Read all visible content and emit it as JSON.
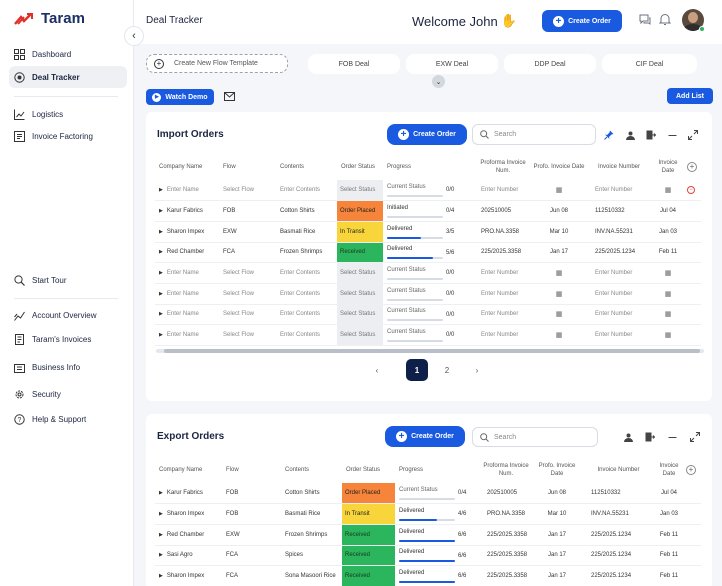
{
  "app": {
    "name": "Taram",
    "logo_icon": "taram-logo-icon"
  },
  "sidebar": {
    "items": [
      {
        "label": "Dashboard"
      },
      {
        "label": "Deal Tracker"
      },
      {
        "label": "Logistics"
      },
      {
        "label": "Invoice Factoring"
      },
      {
        "label": "Start Tour"
      },
      {
        "label": "Account Overview"
      },
      {
        "label": "Taram's Invoices"
      },
      {
        "label": "Business Info"
      },
      {
        "label": "Security"
      },
      {
        "label": "Help & Support"
      }
    ]
  },
  "header": {
    "page_title": "Deal Tracker",
    "welcome": "Welcome John",
    "create_order": "Create Order"
  },
  "templates": {
    "create_new": "Create New Flow Template",
    "items": [
      "FOB Deal",
      "EXW Deal",
      "DDP Deal",
      "CIF Deal"
    ]
  },
  "toolbar": {
    "watch_demo": "Watch Demo",
    "add_list": "Add List"
  },
  "import": {
    "title": "Import Orders",
    "create_order": "Create Order",
    "search_placeholder": "Search",
    "columns": [
      "Company Name",
      "Flow",
      "Contents",
      "Order Status",
      "Progress",
      "Proforma Invoice Num.",
      "Profo. Invoice Date",
      "Invoice Number",
      "Invoice Date"
    ],
    "rows": [
      {
        "company": "Enter Name",
        "flow": "Select Flow",
        "contents": "Enter Contents",
        "status": "Select Status",
        "status_color": "gray",
        "progress": "Current Status",
        "count": "0/0",
        "fraction": 0,
        "proforma": "Enter Number",
        "pdate": "",
        "invoice": "Enter Number",
        "idate": "",
        "placeholder": true,
        "remove": true
      },
      {
        "company": "Karur Fabrics",
        "flow": "FOB",
        "contents": "Cotton Shirts",
        "status": "Order Placed",
        "status_color": "orange",
        "progress": "Initiated",
        "count": "0/4",
        "fraction": 0,
        "proforma": "202510005",
        "pdate": "Jun 08",
        "invoice": "112510332",
        "idate": "Jul 04"
      },
      {
        "company": "Sharon Impex",
        "flow": "EXW",
        "contents": "Basmati Rice",
        "status": "In Transit",
        "status_color": "yellow",
        "progress": "Delivered",
        "count": "3/5",
        "fraction": 0.6,
        "proforma": "PRO.NA.3358",
        "pdate": "Mar 10",
        "invoice": "INV.NA.55231",
        "idate": "Jan 03"
      },
      {
        "company": "Red Chamber",
        "flow": "FCA",
        "contents": "Frozen Shrimps",
        "status": "Received",
        "status_color": "green",
        "progress": "Delivered",
        "count": "5/6",
        "fraction": 0.83,
        "proforma": "225/2025.3358",
        "pdate": "Jan 17",
        "invoice": "225/2025.1234",
        "idate": "Feb 11"
      },
      {
        "company": "Enter Name",
        "flow": "Select Flow",
        "contents": "Enter Contents",
        "status": "Select Status",
        "status_color": "gray",
        "progress": "Current Status",
        "count": "0/0",
        "fraction": 0,
        "proforma": "Enter Number",
        "pdate": "",
        "invoice": "Enter Number",
        "idate": "",
        "placeholder": true
      },
      {
        "company": "Enter Name",
        "flow": "Select Flow",
        "contents": "Enter Contents",
        "status": "Select Status",
        "status_color": "gray",
        "progress": "Current Status",
        "count": "0/0",
        "fraction": 0,
        "proforma": "Enter Number",
        "pdate": "",
        "invoice": "Enter Number",
        "idate": "",
        "placeholder": true
      },
      {
        "company": "Enter Name",
        "flow": "Select Flow",
        "contents": "Enter Contents",
        "status": "Select Status",
        "status_color": "gray",
        "progress": "Current Status",
        "count": "0/0",
        "fraction": 0,
        "proforma": "Enter Number",
        "pdate": "",
        "invoice": "Enter Number",
        "idate": "",
        "placeholder": true
      },
      {
        "company": "Enter Name",
        "flow": "Select Flow",
        "contents": "Enter Contents",
        "status": "Select Status",
        "status_color": "gray",
        "progress": "Current Status",
        "count": "0/0",
        "fraction": 0,
        "proforma": "Enter Number",
        "pdate": "",
        "invoice": "Enter Number",
        "idate": "",
        "placeholder": true
      }
    ],
    "pages": [
      "1",
      "2"
    ],
    "current_page": "1"
  },
  "export": {
    "title": "Export Orders",
    "create_order": "Create Order",
    "search_placeholder": "Search",
    "columns": [
      "Company Name",
      "Flow",
      "Contents",
      "Order Status",
      "Progress",
      "Proforma Invoice Num.",
      "Profo. Invoice Date",
      "Invoice Number",
      "Invoice Date"
    ],
    "rows": [
      {
        "company": "Karur Fabrics",
        "flow": "FOB",
        "contents": "Cotton Shirts",
        "status": "Order Placed",
        "status_color": "orange",
        "progress": "Current Status",
        "count": "0/4",
        "fraction": 0,
        "proforma": "202510005",
        "pdate": "Jun 08",
        "invoice": "112510332",
        "idate": "Jul 04"
      },
      {
        "company": "Sharon Impex",
        "flow": "FOB",
        "contents": "Basmati Rice",
        "status": "In Transit",
        "status_color": "yellow",
        "progress": "Delivered",
        "count": "4/6",
        "fraction": 0.67,
        "proforma": "PRO.NA.3358",
        "pdate": "Mar 10",
        "invoice": "INV.NA.55231",
        "idate": "Jan 03"
      },
      {
        "company": "Red Chamber",
        "flow": "EXW",
        "contents": "Frozen Shrimps",
        "status": "Received",
        "status_color": "green",
        "progress": "Delivered",
        "count": "6/6",
        "fraction": 1,
        "proforma": "225/2025.3358",
        "pdate": "Jan 17",
        "invoice": "225/2025.1234",
        "idate": "Feb 11"
      },
      {
        "company": "Sasi Agro",
        "flow": "FCA",
        "contents": "Spices",
        "status": "Received",
        "status_color": "green",
        "progress": "Delivered",
        "count": "6/6",
        "fraction": 1,
        "proforma": "225/2025.3358",
        "pdate": "Jan 17",
        "invoice": "225/2025.1234",
        "idate": "Feb 11"
      },
      {
        "company": "Sharon Impex",
        "flow": "FCA",
        "contents": "Sona Masoori Rice",
        "status": "Received",
        "status_color": "green",
        "progress": "Delivered",
        "count": "6/6",
        "fraction": 1,
        "proforma": "225/2025.3358",
        "pdate": "Jan 17",
        "invoice": "225/2025.1234",
        "idate": "Feb 11"
      }
    ]
  }
}
